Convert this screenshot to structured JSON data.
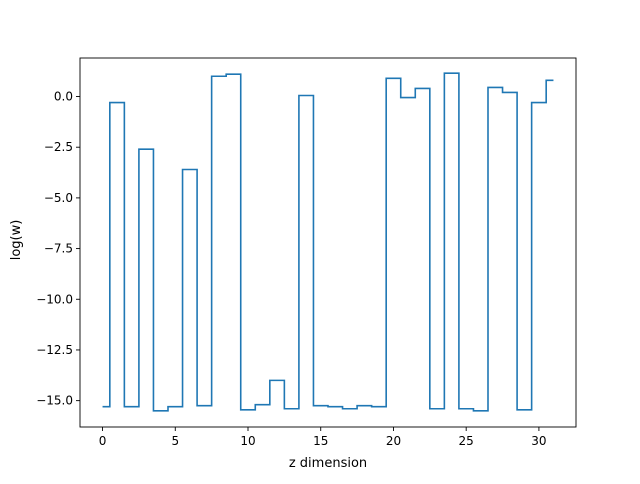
{
  "chart_data": {
    "type": "line",
    "drawstyle": "steps-mid",
    "xlabel": "z dimension",
    "ylabel": "log(w)",
    "xlim": [
      -1.55,
      32.55
    ],
    "ylim": [
      -16.3,
      1.9
    ],
    "xticks": [
      0,
      5,
      10,
      15,
      20,
      25,
      30
    ],
    "yticks": [
      0.0,
      -2.5,
      -5.0,
      -7.5,
      -10.0,
      -12.5,
      -15.0
    ],
    "xtick_labels": [
      "0",
      "5",
      "10",
      "15",
      "20",
      "25",
      "30"
    ],
    "ytick_labels": [
      "0.0",
      "−2.5",
      "−5.0",
      "−7.5",
      "−10.0",
      "−12.5",
      "−15.0"
    ],
    "grid": false,
    "series": [
      {
        "color": "#1f77b4",
        "x": [
          0,
          1,
          2,
          3,
          4,
          5,
          6,
          7,
          8,
          9,
          10,
          11,
          12,
          13,
          14,
          15,
          16,
          17,
          18,
          19,
          20,
          21,
          22,
          23,
          24,
          25,
          26,
          27,
          28,
          29,
          30,
          31
        ],
        "y": [
          -15.3,
          -0.3,
          -15.3,
          -2.6,
          -15.5,
          -15.3,
          -3.6,
          -15.25,
          1.0,
          1.1,
          -15.45,
          -15.2,
          -14.0,
          -15.4,
          0.05,
          -15.25,
          -15.3,
          -15.4,
          -15.25,
          -15.3,
          0.9,
          -0.05,
          0.4,
          -15.4,
          1.15,
          -15.4,
          -15.5,
          0.45,
          0.2,
          -15.45,
          -0.3,
          0.8
        ]
      }
    ]
  }
}
